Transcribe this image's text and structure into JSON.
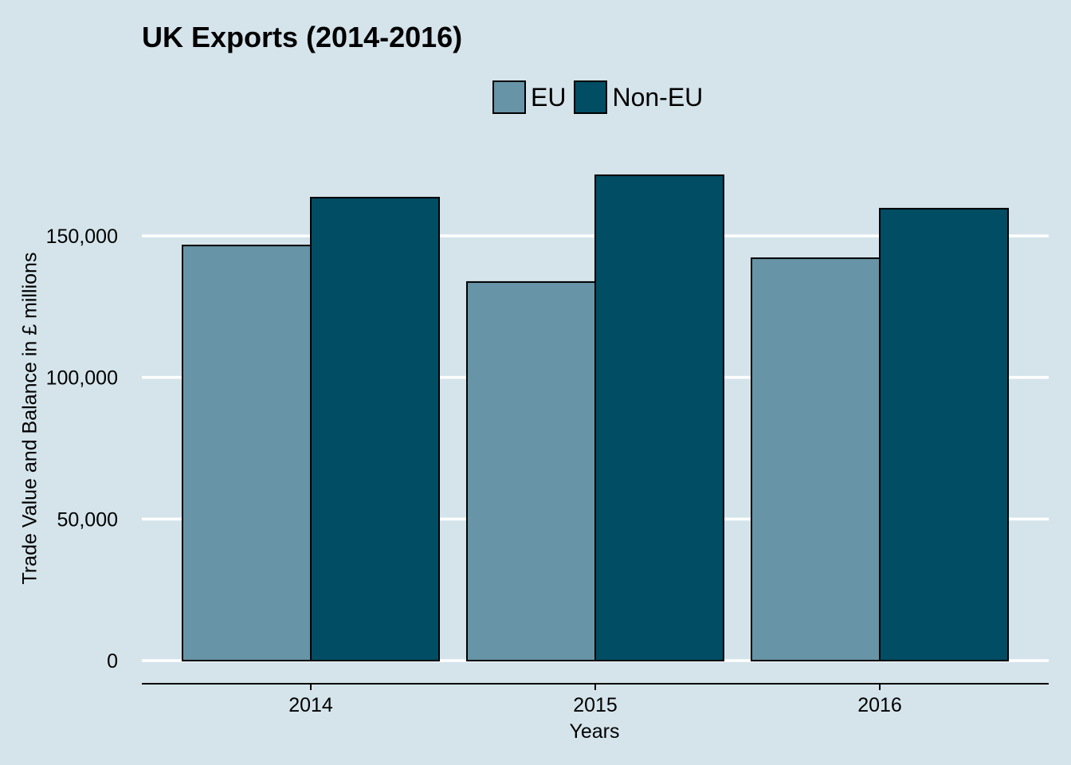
{
  "chart_data": {
    "type": "bar",
    "title": "UK Exports (2014-2016)",
    "xlabel": "Years",
    "ylabel": "Trade Value and Balance in £ millions",
    "categories": [
      "2014",
      "2015",
      "2016"
    ],
    "series": [
      {
        "name": "EU",
        "color": "#6794a7",
        "values": [
          146600,
          133700,
          142100
        ]
      },
      {
        "name": "Non-EU",
        "color": "#014d64",
        "values": [
          163500,
          171400,
          159600
        ]
      }
    ],
    "yticks": [
      0,
      50000,
      100000,
      150000
    ],
    "ytick_labels": [
      "0",
      "50,000",
      "100,000",
      "150,000"
    ],
    "ylim": [
      0,
      175000
    ],
    "grid": "horizontal",
    "legend_position": "top"
  },
  "colors": {
    "background": "#d5e4eb",
    "gridline": "#ffffff",
    "eu": "#6794a7",
    "non_eu": "#014d64"
  }
}
